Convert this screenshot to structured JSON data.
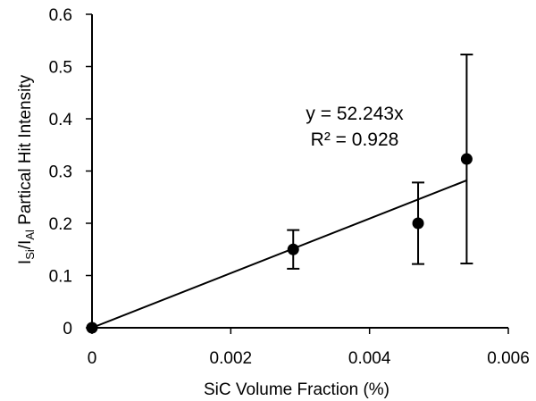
{
  "chart_data": {
    "type": "scatter",
    "xlabel": "SiC Volume Fraction (%)",
    "ylabel": {
      "prefix": "I",
      "sub1": "Si",
      "slash": "/I",
      "sub2": "Al",
      "suffix": " Partical Hit Intensity"
    },
    "xlim": [
      0,
      0.006
    ],
    "ylim": [
      0,
      0.6
    ],
    "x_ticks": [
      0,
      0.002,
      0.004,
      0.006
    ],
    "x_tick_labels": [
      "0",
      "0.002",
      "0.004",
      "0.006"
    ],
    "y_ticks": [
      0,
      0.1,
      0.2,
      0.3,
      0.4,
      0.5,
      0.6
    ],
    "y_tick_labels": [
      "0",
      "0.1",
      "0.2",
      "0.3",
      "0.4",
      "0.5",
      "0.6"
    ],
    "grid": false,
    "points": [
      {
        "x": 0,
        "y": 0,
        "err": 0
      },
      {
        "x": 0.0029,
        "y": 0.15,
        "err": 0.037
      },
      {
        "x": 0.0047,
        "y": 0.2,
        "err": 0.078
      },
      {
        "x": 0.0054,
        "y": 0.323,
        "err": 0.2
      }
    ],
    "trendline": {
      "slope": 52.243,
      "x_range": [
        0,
        0.0054
      ],
      "equation": "y = 52.243x",
      "r_squared": "R² = 0.928"
    },
    "marker_color": "#000000"
  }
}
